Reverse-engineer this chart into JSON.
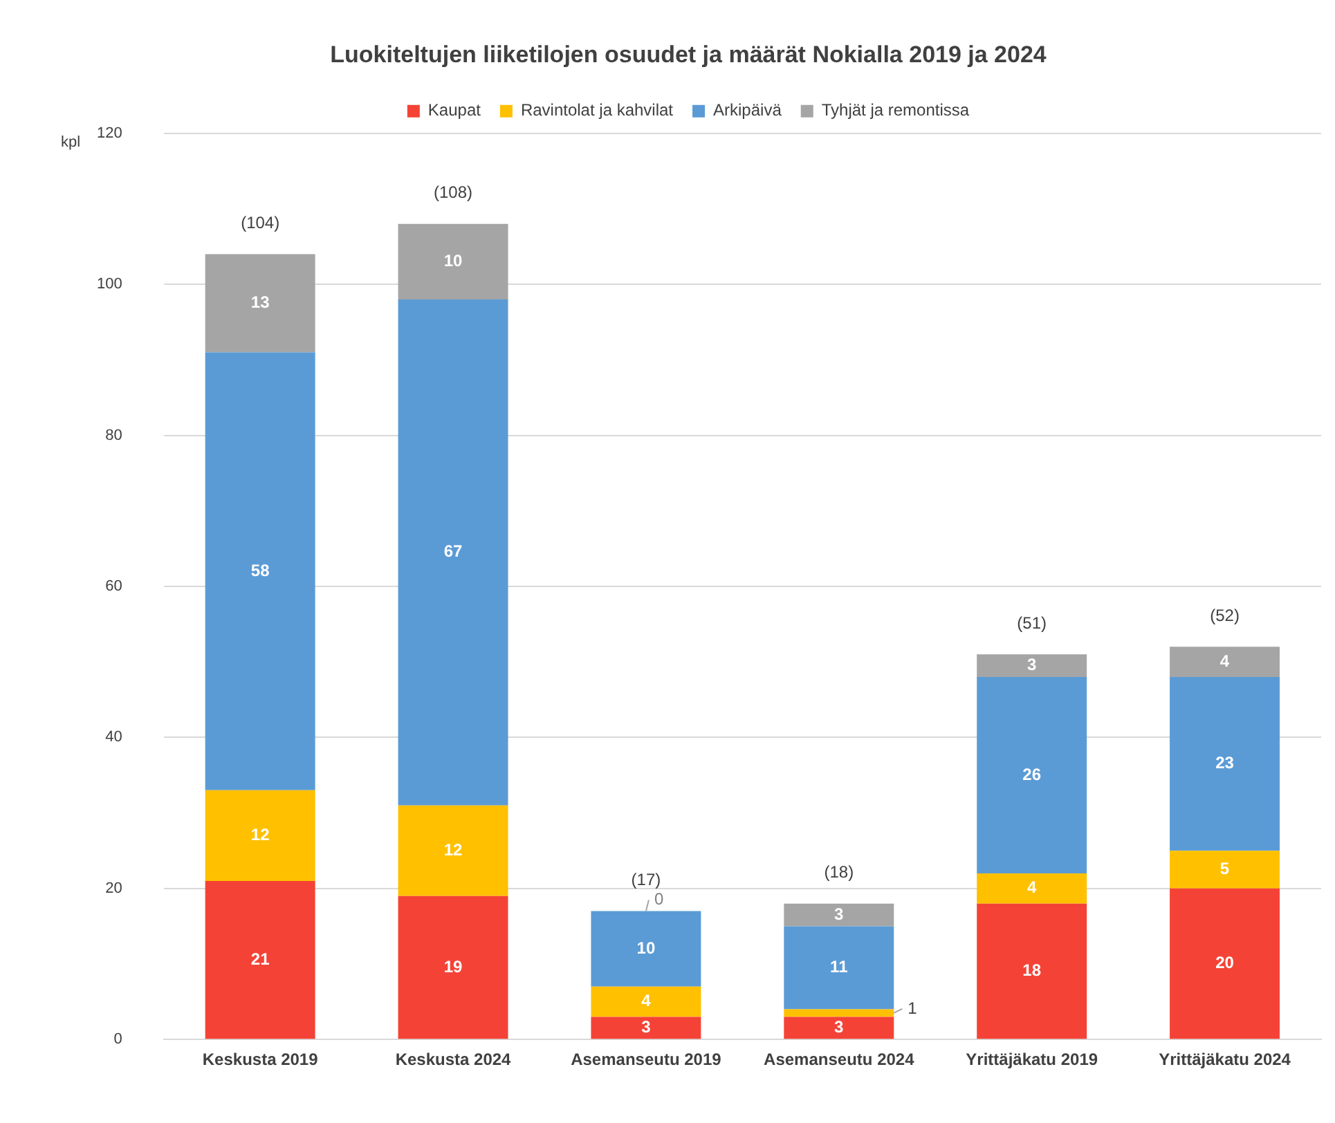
{
  "chart_data": {
    "type": "bar",
    "stacked": true,
    "title": "Luokiteltujen liiketilojen osuudet ja määrät Nokialla 2019 ja 2024",
    "ylabel": "kpl",
    "categories": [
      "Keskusta 2019",
      "Keskusta 2024",
      "Asemanseutu 2019",
      "Asemanseutu 2024",
      "Yrittäjäkatu 2019",
      "Yrittäjäkatu 2024"
    ],
    "series": [
      {
        "name": "Kaupat",
        "color": "#f44336",
        "values": [
          21,
          19,
          3,
          3,
          18,
          20
        ]
      },
      {
        "name": "Ravintolat ja kahvilat",
        "color": "#ffc000",
        "values": [
          12,
          12,
          4,
          1,
          4,
          5
        ]
      },
      {
        "name": "Arkipäivä",
        "color": "#5b9bd5",
        "values": [
          58,
          67,
          10,
          11,
          26,
          23
        ]
      },
      {
        "name": "Tyhjät ja remontissa",
        "color": "#a5a5a5",
        "values": [
          13,
          10,
          0,
          3,
          3,
          4
        ]
      }
    ],
    "totals": [
      "(104)",
      "(108)",
      "(17)",
      "(18)",
      "(51)",
      "(52)"
    ],
    "ylim": [
      0,
      120
    ],
    "yticks": [
      0,
      20,
      40,
      60,
      80,
      100,
      120
    ],
    "grid": "y",
    "legend": "top",
    "data_labels": true
  }
}
